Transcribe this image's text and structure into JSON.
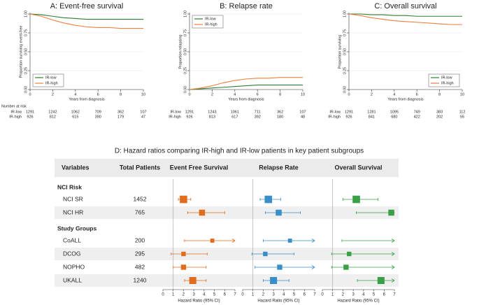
{
  "chart_data": [
    {
      "type": "line",
      "title": "A: Event-free survival",
      "xlabel": "Years from diagnosis",
      "ylabel": "Proportion surviving event-free",
      "x": [
        0,
        1,
        2,
        3,
        4,
        5,
        6,
        7,
        8,
        9,
        10
      ],
      "xlim": [
        0,
        10
      ],
      "ylim": [
        0,
        1
      ],
      "xticks": [
        0,
        2,
        4,
        6,
        8,
        10
      ],
      "yticks": [
        {
          "value": 0,
          "label": "0.00"
        },
        {
          "value": 0.25,
          "label": "0.25"
        },
        {
          "value": 0.5,
          "label": "0.50"
        },
        {
          "value": 0.75,
          "label": "0.75"
        },
        {
          "value": 1,
          "label": "1.00"
        }
      ],
      "grid": true,
      "legend": "bottom-left",
      "series": [
        {
          "name": "IR-low",
          "color": "#2e7d32",
          "values": [
            1,
            0.99,
            0.97,
            0.95,
            0.94,
            0.93,
            0.93,
            0.93,
            0.93,
            0.93,
            0.93
          ]
        },
        {
          "name": "IR-high",
          "color": "#f07e3f",
          "values": [
            1,
            0.97,
            0.92,
            0.88,
            0.85,
            0.83,
            0.82,
            0.82,
            0.81,
            0.81,
            0.81
          ]
        }
      ],
      "risk_table": {
        "title": "Number at risk",
        "rows": [
          {
            "name": "IR-low",
            "values": [
              1291,
              1242,
              1062,
              709,
              362,
              107
            ]
          },
          {
            "name": "IR-high",
            "values": [
              926,
              812,
              615,
              390,
              179,
              47
            ]
          }
        ]
      }
    },
    {
      "type": "line",
      "title": "B: Relapse rate",
      "xlabel": "Years from diagnosis",
      "ylabel": "Proportion relapsing",
      "x": [
        0,
        1,
        2,
        3,
        4,
        5,
        6,
        7,
        8,
        9,
        10
      ],
      "xlim": [
        0,
        10
      ],
      "ylim": [
        0,
        1
      ],
      "xticks": [
        0,
        2,
        4,
        6,
        8,
        10
      ],
      "yticks": [
        {
          "value": 0,
          "label": "0.00"
        },
        {
          "value": 0.25,
          "label": "0.25"
        },
        {
          "value": 0.5,
          "label": "0.50"
        },
        {
          "value": 0.75,
          "label": "0.75"
        },
        {
          "value": 1,
          "label": "1.00"
        }
      ],
      "grid": true,
      "legend": "top-left",
      "series": [
        {
          "name": "IR-low",
          "color": "#2e7d32",
          "values": [
            0,
            0.01,
            0.02,
            0.03,
            0.04,
            0.05,
            0.06,
            0.06,
            0.06,
            0.06,
            0.06
          ]
        },
        {
          "name": "IR-high",
          "color": "#f07e3f",
          "values": [
            0,
            0.02,
            0.05,
            0.09,
            0.12,
            0.14,
            0.15,
            0.15,
            0.16,
            0.16,
            0.16
          ]
        }
      ],
      "risk_table": {
        "rows": [
          {
            "name": "IR-low",
            "values": [
              1291,
              1243,
              1061,
              711,
              362,
              107
            ]
          },
          {
            "name": "IR-high",
            "values": [
              926,
              813,
              617,
              392,
              180,
              48
            ]
          }
        ]
      }
    },
    {
      "type": "line",
      "title": "C: Overall survival",
      "xlabel": "Years from diagnosis",
      "ylabel": "Proportion surviving",
      "x": [
        0,
        1,
        2,
        3,
        4,
        5,
        6,
        7,
        8,
        9,
        10
      ],
      "xlim": [
        0,
        10
      ],
      "ylim": [
        0,
        1
      ],
      "xticks": [
        0,
        2,
        4,
        6,
        8,
        10
      ],
      "yticks": [
        {
          "value": 0,
          "label": "0.00"
        },
        {
          "value": 0.25,
          "label": "0.25"
        },
        {
          "value": 0.5,
          "label": "0.50"
        },
        {
          "value": 0.75,
          "label": "0.75"
        },
        {
          "value": 1,
          "label": "1.00"
        }
      ],
      "grid": true,
      "legend": "bottom-right",
      "series": [
        {
          "name": "IR-low",
          "color": "#2e7d32",
          "values": [
            1,
            1,
            0.99,
            0.99,
            0.98,
            0.98,
            0.97,
            0.97,
            0.97,
            0.97,
            0.97
          ]
        },
        {
          "name": "IR-high",
          "color": "#f07e3f",
          "values": [
            1,
            0.98,
            0.95,
            0.93,
            0.91,
            0.9,
            0.89,
            0.88,
            0.87,
            0.86,
            0.86
          ]
        }
      ],
      "risk_table": {
        "rows": [
          {
            "name": "IR-low",
            "values": [
              1291,
              1281,
              1095,
              749,
              383,
              112
            ]
          },
          {
            "name": "IR-high",
            "values": [
              926,
              841,
              680,
              422,
              202,
              55
            ]
          }
        ]
      }
    },
    {
      "type": "forest",
      "title": "D: Hazard ratios comparing IR-high and IR-low patients in key patient subgroups",
      "columns": [
        "Variables",
        "Total Patients"
      ],
      "sections": [
        {
          "name": "NCI Risk",
          "categories": [
            "NCI SR",
            "NCI HR"
          ],
          "totals": [
            1452,
            765
          ]
        },
        {
          "name": "Study Groups",
          "categories": [
            "CoALL",
            "DCOG",
            "NOPHO",
            "UKALL"
          ],
          "totals": [
            200,
            295,
            482,
            1240
          ]
        }
      ],
      "panels": [
        {
          "name": "Event Free Survival",
          "color": "#e06c1f",
          "xlabel": "Hazard Ratio (95% CI)",
          "xlim": [
            0,
            7
          ],
          "xticks": [
            0,
            1,
            2,
            3,
            4,
            5,
            6,
            7
          ],
          "reference": 1,
          "values": [
            2.0,
            3.8,
            4.8,
            2.0,
            2.0,
            2.9
          ],
          "lower": [
            1.5,
            2.4,
            2.1,
            0.8,
            1.0,
            2.1
          ],
          "upper": [
            2.7,
            6.0,
            7,
            4.3,
            4.2,
            4.2
          ]
        },
        {
          "name": "Relapse Rate",
          "color": "#3a8ec8",
          "xlabel": "Hazard Ratio (95% CI)",
          "xlim": [
            0,
            7
          ],
          "xticks": [
            0,
            1,
            2,
            3,
            4,
            5,
            6,
            7
          ],
          "reference": 1,
          "values": [
            2.5,
            3.5,
            4.6,
            2.2,
            3.6,
            3.0
          ],
          "lower": [
            1.7,
            2.2,
            2.0,
            0.9,
            1.2,
            2.0
          ],
          "upper": [
            3.7,
            5.6,
            7,
            5.0,
            7,
            4.5
          ]
        },
        {
          "name": "Overall Survival",
          "color": "#3aa048",
          "xlabel": "Hazard Ratio (95% CI)",
          "xlim": [
            0,
            7
          ],
          "xticks": [
            0,
            1,
            2,
            3,
            4,
            5,
            6,
            7
          ],
          "reference": 1,
          "values": [
            3.3,
            6.7,
            null,
            2.6,
            2.3,
            5.7
          ],
          "lower": [
            2.0,
            3.3,
            1.9,
            0.9,
            0.9,
            3.4
          ],
          "upper": [
            5.4,
            7,
            7,
            7,
            7,
            7
          ]
        }
      ]
    }
  ]
}
